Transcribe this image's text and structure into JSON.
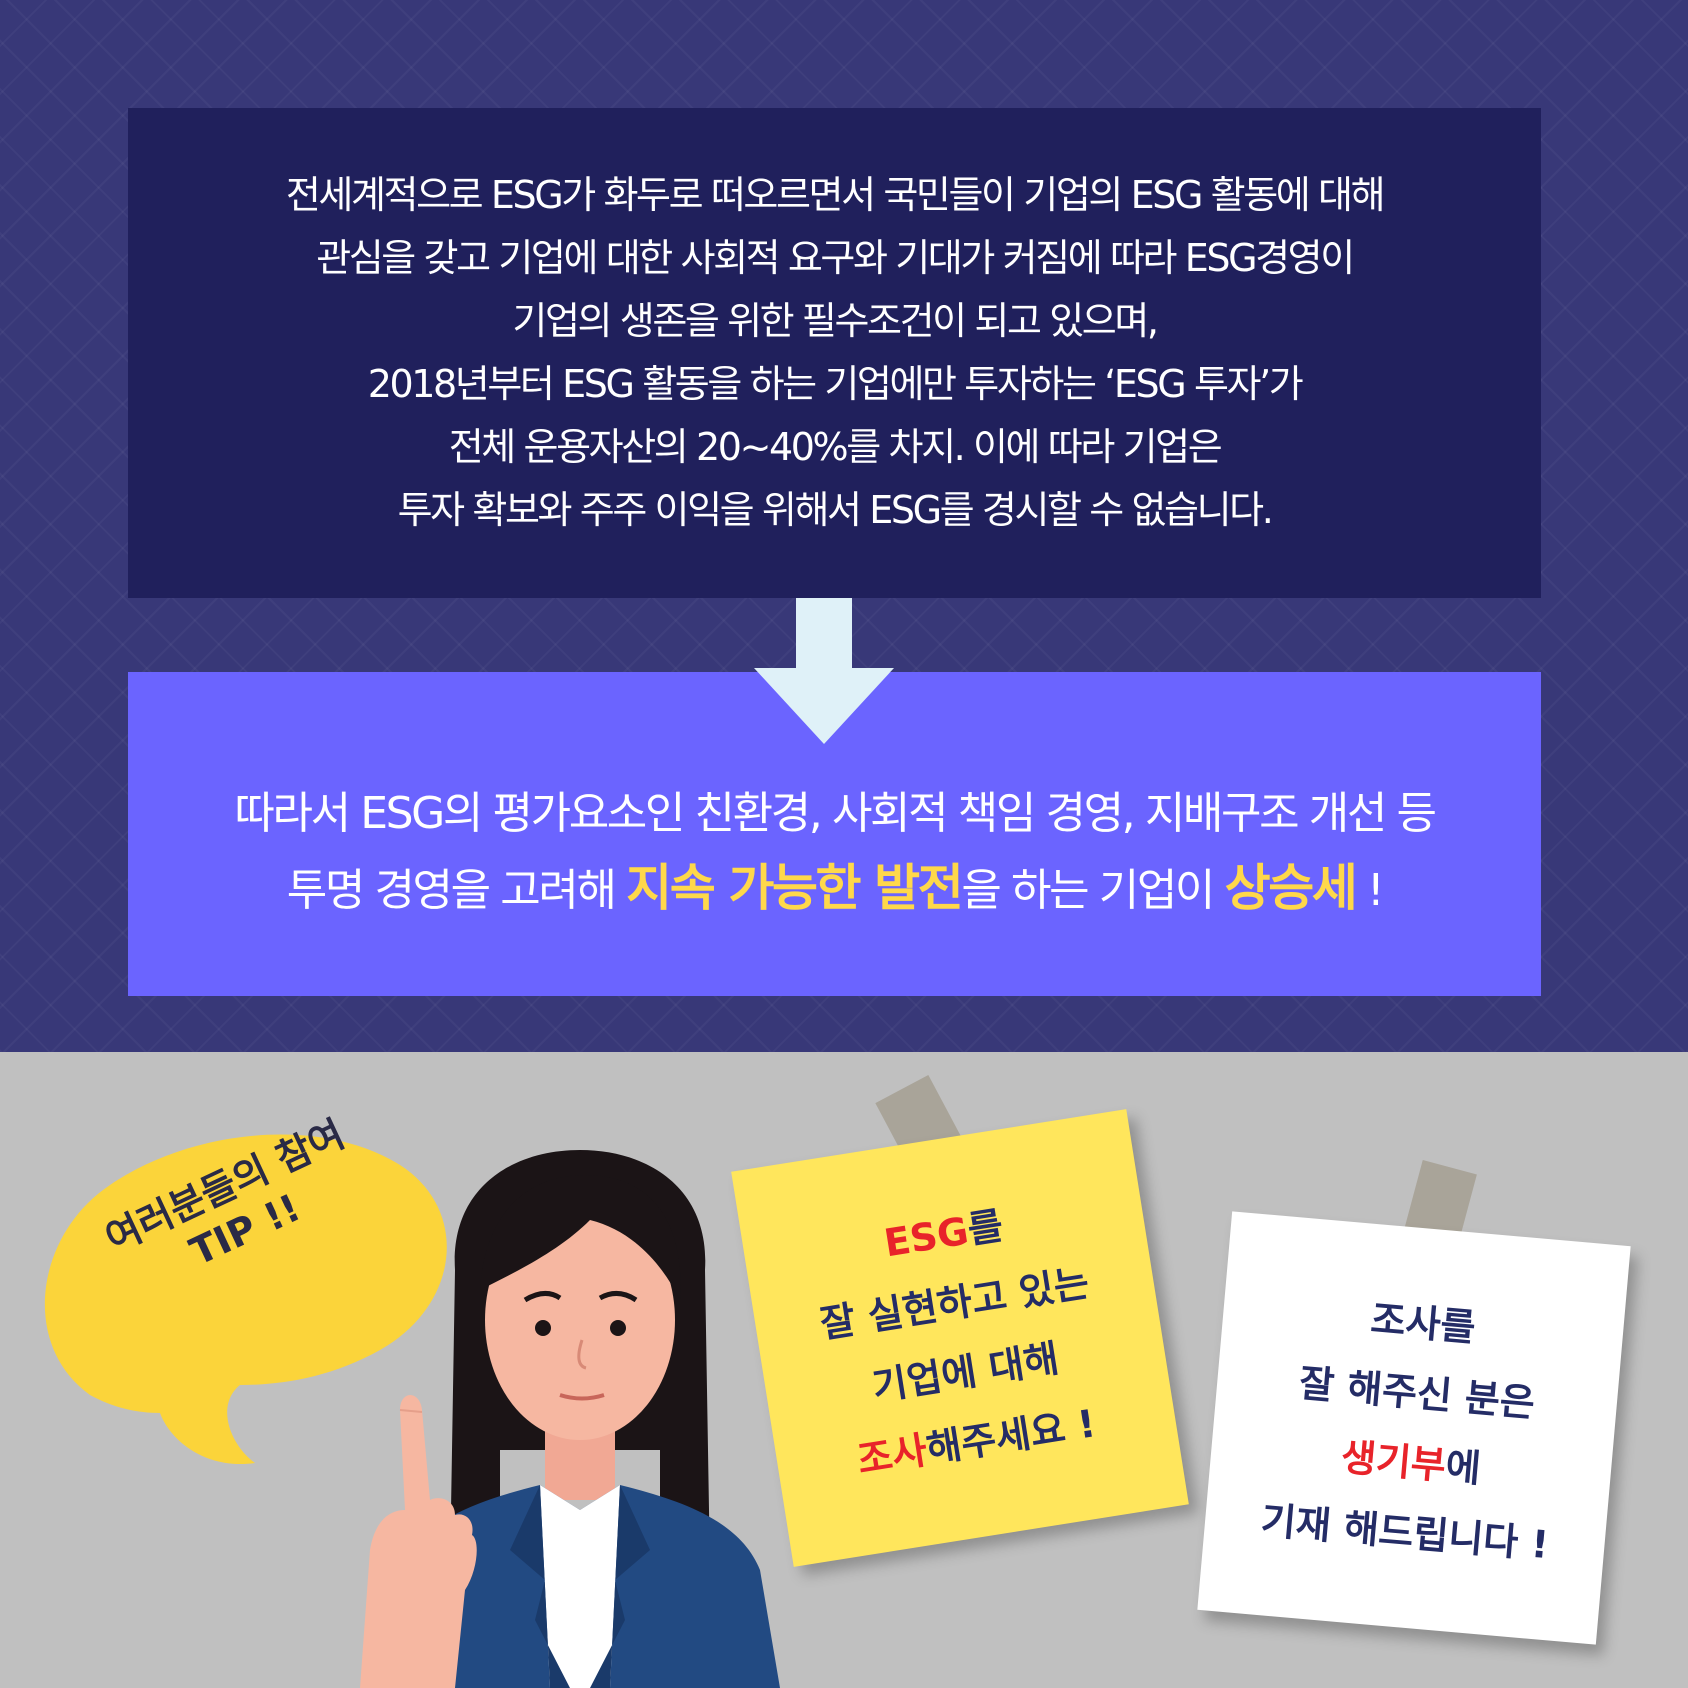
{
  "intro": {
    "lines": [
      "전세계적으로 ESG가 화두로 떠오르면서 국민들이 기업의 ESG 활동에 대해",
      "관심을 갖고 기업에 대한 사회적 요구와 기대가 커짐에 따라 ESG경영이",
      "기업의 생존을 위한 필수조건이 되고 있으며,",
      "2018년부터 ESG 활동을 하는 기업에만 투자하는 ‘ESG 투자’가",
      "전체 운용자산의 20~40%를 차지. 이에 따라 기업은",
      "투자 확보와 주주 이익을 위해서 ESG를 경시할 수 없습니다."
    ]
  },
  "conclusion": {
    "line1": "따라서 ESG의 평가요소인 친환경, 사회적 책임 경영, 지배구조 개선 등",
    "line2_a": "투명 경영을 고려해 ",
    "line2_hl1": "지속 가능한 발전",
    "line2_b": "을 하는 기업이 ",
    "line2_hl2": "상승세",
    "line2_c": " !"
  },
  "bubble": {
    "line1": "여러분들의 참여",
    "line2": "TIP !!"
  },
  "note_yellow": {
    "line1_red": "ESG",
    "line1_rest": "를",
    "line2": "잘 실현하고 있는",
    "line3": "기업에 대해",
    "line4_red": "조사",
    "line4_rest": "해주세요 !"
  },
  "note_white": {
    "line1": "조사를",
    "line2": "잘 해주신 분은",
    "line3_red": "생기부",
    "line3_rest": "에",
    "line4": "기재 해드립니다 !"
  },
  "colors": {
    "background_top": "#383878",
    "intro_box": "#20205c",
    "conclusion_box": "#6b64ff",
    "highlight": "#ffd84a",
    "arrow": "#dff1f8",
    "background_bottom": "#c0c0c0",
    "bubble": "#fbd43a",
    "note_yellow": "#ffe65c",
    "note_red": "#e8232a",
    "note_text": "#242c66"
  }
}
